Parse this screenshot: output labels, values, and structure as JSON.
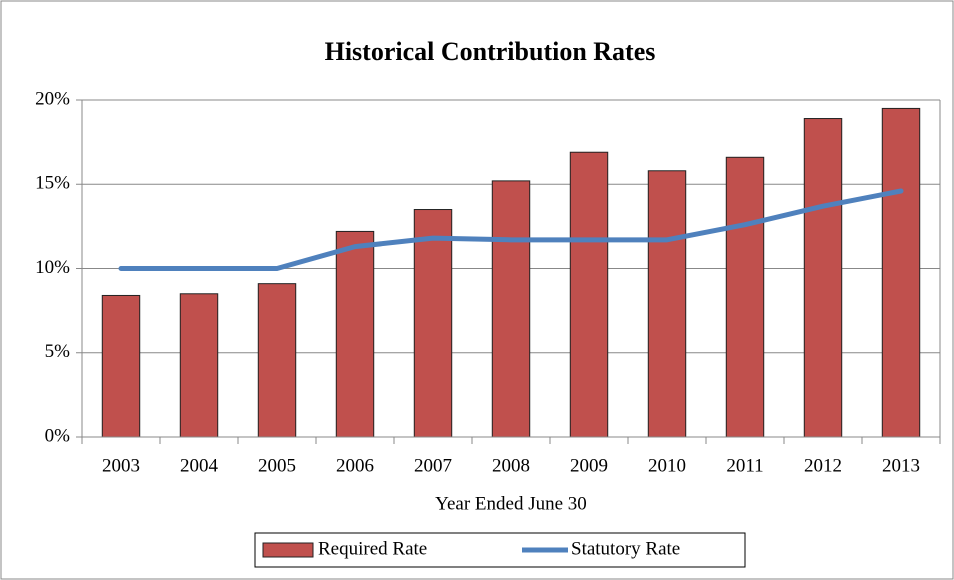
{
  "chart_data": {
    "type": "bar_line",
    "title": "Historical Contribution Rates",
    "x_label": "Year Ended June 30",
    "categories": [
      "2003",
      "2004",
      "2005",
      "2006",
      "2007",
      "2008",
      "2009",
      "2010",
      "2011",
      "2012",
      "2013"
    ],
    "series": [
      {
        "name": "Required Rate",
        "type": "bar",
        "color": "#c0504d",
        "values": [
          8.4,
          8.5,
          9.1,
          12.2,
          13.5,
          15.2,
          16.9,
          15.8,
          16.6,
          18.9,
          19.5
        ]
      },
      {
        "name": "Statutory Rate",
        "type": "line",
        "color": "#4f81bd",
        "values": [
          10,
          10,
          10,
          11.3,
          11.8,
          11.7,
          11.7,
          11.7,
          12.6,
          13.7,
          14.6
        ]
      }
    ],
    "ylim": [
      0,
      20
    ],
    "yticks": [
      {
        "value": 0,
        "label": "0%"
      },
      {
        "value": 5,
        "label": "5%"
      },
      {
        "value": 10,
        "label": "10%"
      },
      {
        "value": 15,
        "label": "15%"
      },
      {
        "value": 20,
        "label": "20%"
      }
    ],
    "grid": true,
    "legend": "bottom"
  }
}
